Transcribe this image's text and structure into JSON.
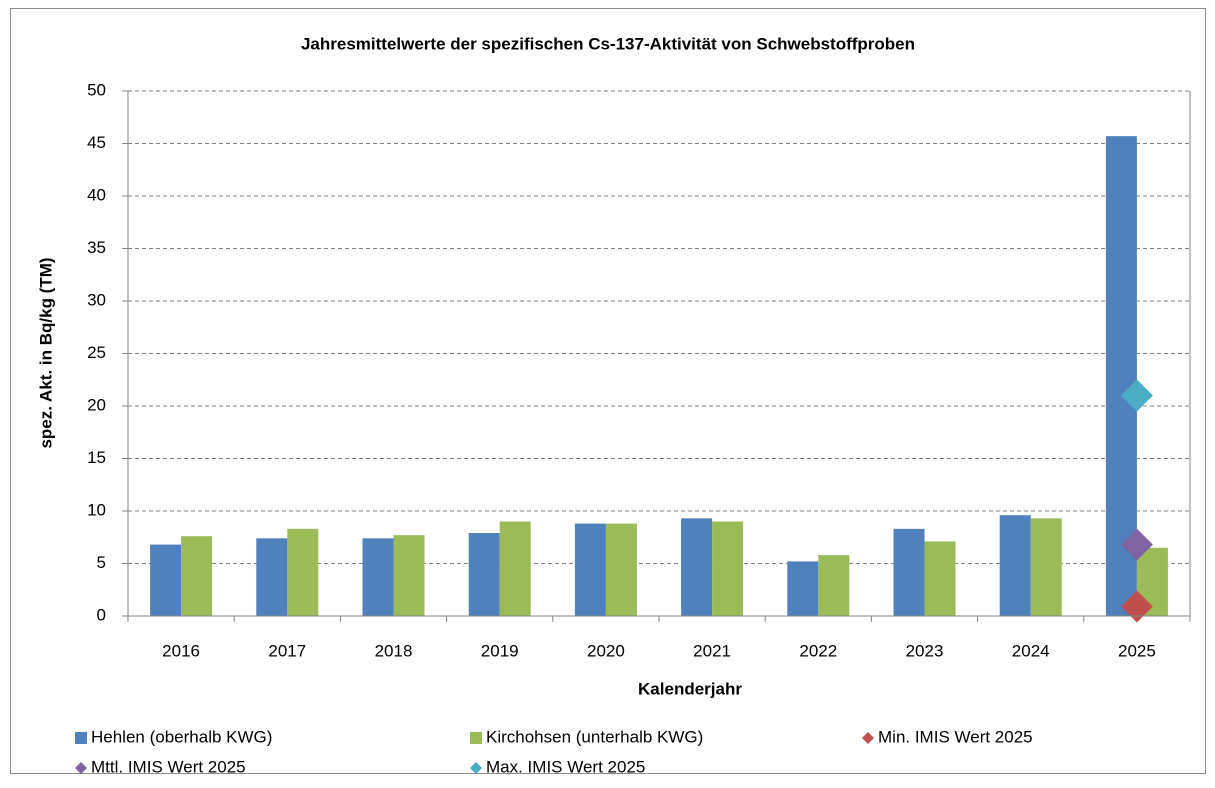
{
  "chart_data": {
    "type": "bar",
    "title": "Jahresmittelwerte der spezifischen Cs-137-Aktivität von Schwebstoffproben",
    "xlabel": "Kalenderjahr",
    "ylabel": "spez. Akt. in Bq/kg (TM)",
    "categories": [
      "2016",
      "2017",
      "2018",
      "2019",
      "2020",
      "2021",
      "2022",
      "2023",
      "2024",
      "2025"
    ],
    "series": [
      {
        "name": "Hehlen (oberhalb KWG)",
        "type": "bar",
        "color": "#4f81bd",
        "values": [
          6.8,
          7.4,
          7.4,
          7.9,
          8.8,
          9.3,
          5.2,
          8.3,
          9.6,
          45.7
        ]
      },
      {
        "name": "Kirchohsen (unterhalb KWG)",
        "type": "bar",
        "color": "#9bbb59",
        "values": [
          7.6,
          8.3,
          7.7,
          9.0,
          8.8,
          9.0,
          5.8,
          7.1,
          9.3,
          6.5
        ]
      },
      {
        "name": "Min. IMIS Wert 2025",
        "type": "scatter",
        "color": "#c0504d",
        "values": [
          null,
          null,
          null,
          null,
          null,
          null,
          null,
          null,
          null,
          0.9
        ]
      },
      {
        "name": "Mttl. IMIS Wert 2025",
        "type": "scatter",
        "color": "#8064a2",
        "values": [
          null,
          null,
          null,
          null,
          null,
          null,
          null,
          null,
          null,
          6.8
        ]
      },
      {
        "name": "Max. IMIS Wert 2025",
        "type": "scatter",
        "color": "#4bacc6",
        "values": [
          null,
          null,
          null,
          null,
          null,
          null,
          null,
          null,
          null,
          21.0
        ]
      }
    ],
    "ylim": [
      0,
      50
    ],
    "yticks": [
      0,
      5,
      10,
      15,
      20,
      25,
      30,
      35,
      40,
      45,
      50
    ],
    "grid": true,
    "legend": "bottom"
  }
}
